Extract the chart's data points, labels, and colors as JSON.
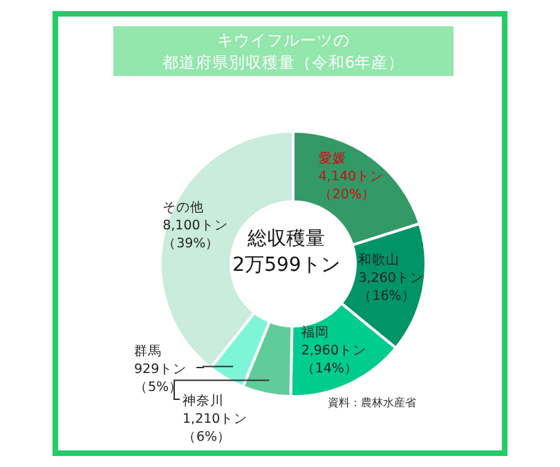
{
  "chart_data": {
    "type": "donut",
    "title": "キウイフルーツの",
    "subtitle": "都道府県別収穫量（令和6年産）",
    "categories": [
      "愛媛",
      "和歌山",
      "福岡",
      "神奈川",
      "群馬",
      "その他"
    ],
    "values": [
      4140,
      3260,
      2960,
      1210,
      929,
      8100
    ],
    "colors": [
      "#339966",
      "#009466",
      "#00cc8f",
      "#5fcc99",
      "#7ff5d8",
      "#c9ecdc"
    ],
    "value_labels": [
      "4,140トン（20%）",
      "3,260トン（16%）",
      "2,960トン（14%）",
      "1,210トン（6%）",
      "929トン（5%）",
      "8,100トン（39%）"
    ],
    "annotations": [
      "総収穫量\n2万599トン",
      "資料：農林水産省"
    ],
    "legend": false
  }
}
